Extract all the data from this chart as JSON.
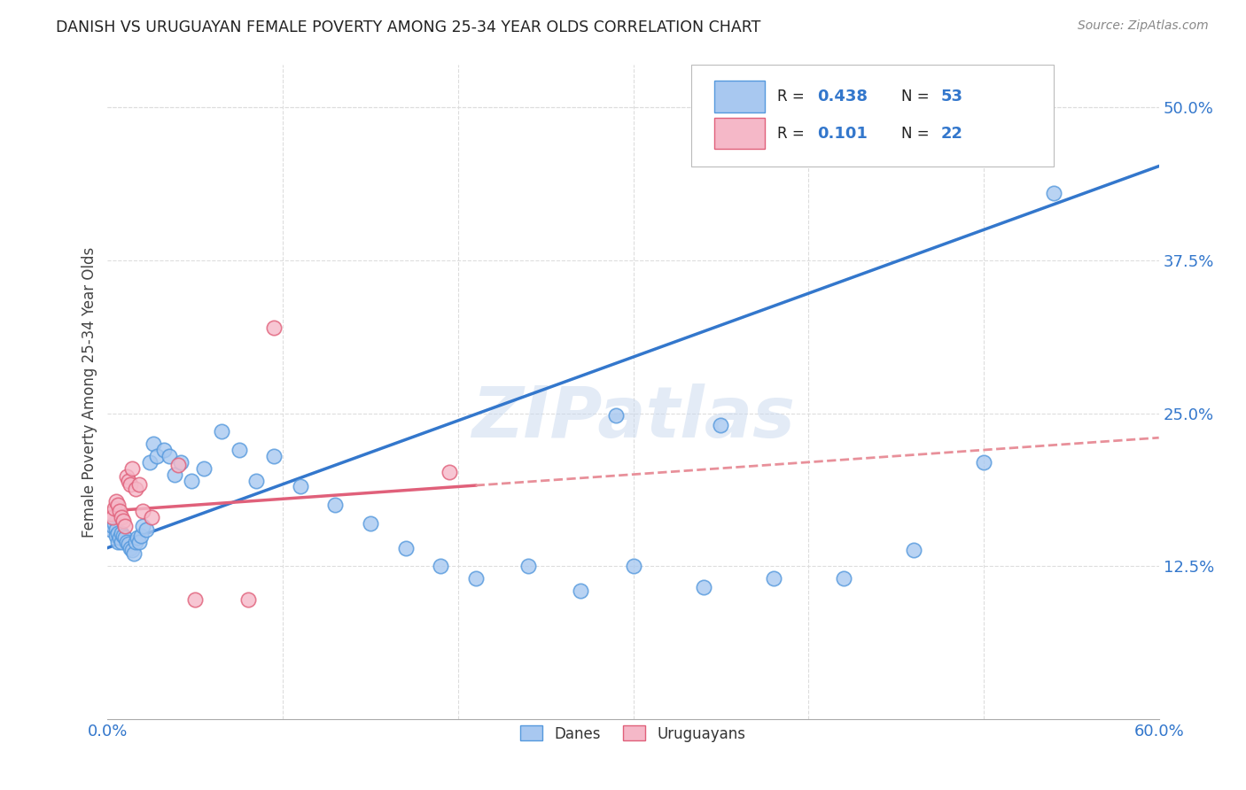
{
  "title": "DANISH VS URUGUAYAN FEMALE POVERTY AMONG 25-34 YEAR OLDS CORRELATION CHART",
  "source": "Source: ZipAtlas.com",
  "ylabel": "Female Poverty Among 25-34 Year Olds",
  "xlim": [
    0.0,
    0.6
  ],
  "ylim": [
    0.0,
    0.535
  ],
  "xticks": [
    0.0,
    0.1,
    0.2,
    0.3,
    0.4,
    0.5,
    0.6
  ],
  "xticklabels": [
    "0.0%",
    "",
    "",
    "",
    "",
    "",
    "60.0%"
  ],
  "ytick_positions": [
    0.125,
    0.25,
    0.375,
    0.5
  ],
  "yticklabels": [
    "12.5%",
    "25.0%",
    "37.5%",
    "50.0%"
  ],
  "danes_color": "#a8c8f0",
  "danes_edge": "#5599dd",
  "uruguayans_color": "#f5b8c8",
  "uruguayans_edge": "#e0607a",
  "regression_danes_color": "#3377cc",
  "regression_uruguayans_solid_color": "#e0607a",
  "regression_uruguayans_dash_color": "#e8909a",
  "legend_text_color": "#3377cc",
  "legend_r_color": "#3377cc",
  "watermark": "ZIPatlas",
  "danes_R": "0.438",
  "danes_N": "53",
  "uruguayans_R": "0.101",
  "uruguayans_N": "22",
  "danes_x": [
    0.002,
    0.003,
    0.004,
    0.005,
    0.005,
    0.006,
    0.006,
    0.007,
    0.008,
    0.008,
    0.009,
    0.01,
    0.011,
    0.012,
    0.013,
    0.014,
    0.015,
    0.016,
    0.017,
    0.018,
    0.019,
    0.02,
    0.022,
    0.024,
    0.026,
    0.028,
    0.032,
    0.035,
    0.038,
    0.042,
    0.048,
    0.055,
    0.065,
    0.075,
    0.085,
    0.095,
    0.11,
    0.13,
    0.15,
    0.17,
    0.19,
    0.21,
    0.24,
    0.27,
    0.3,
    0.34,
    0.38,
    0.42,
    0.46,
    0.5,
    0.29,
    0.35,
    0.54
  ],
  "danes_y": [
    0.155,
    0.158,
    0.16,
    0.155,
    0.15,
    0.145,
    0.152,
    0.148,
    0.145,
    0.152,
    0.15,
    0.148,
    0.145,
    0.143,
    0.14,
    0.138,
    0.135,
    0.145,
    0.148,
    0.145,
    0.15,
    0.158,
    0.155,
    0.21,
    0.225,
    0.215,
    0.22,
    0.215,
    0.2,
    0.21,
    0.195,
    0.205,
    0.235,
    0.22,
    0.195,
    0.215,
    0.19,
    0.175,
    0.16,
    0.14,
    0.125,
    0.115,
    0.125,
    0.105,
    0.125,
    0.108,
    0.115,
    0.115,
    0.138,
    0.21,
    0.248,
    0.24,
    0.43
  ],
  "uruguayans_x": [
    0.002,
    0.003,
    0.004,
    0.005,
    0.006,
    0.007,
    0.008,
    0.009,
    0.01,
    0.011,
    0.012,
    0.013,
    0.014,
    0.016,
    0.018,
    0.02,
    0.025,
    0.04,
    0.05,
    0.08,
    0.095,
    0.195
  ],
  "uruguayans_y": [
    0.168,
    0.165,
    0.172,
    0.178,
    0.175,
    0.17,
    0.165,
    0.162,
    0.158,
    0.198,
    0.195,
    0.192,
    0.205,
    0.188,
    0.192,
    0.17,
    0.165,
    0.208,
    0.098,
    0.098,
    0.32,
    0.202
  ],
  "background_color": "#ffffff",
  "grid_color": "#dddddd"
}
